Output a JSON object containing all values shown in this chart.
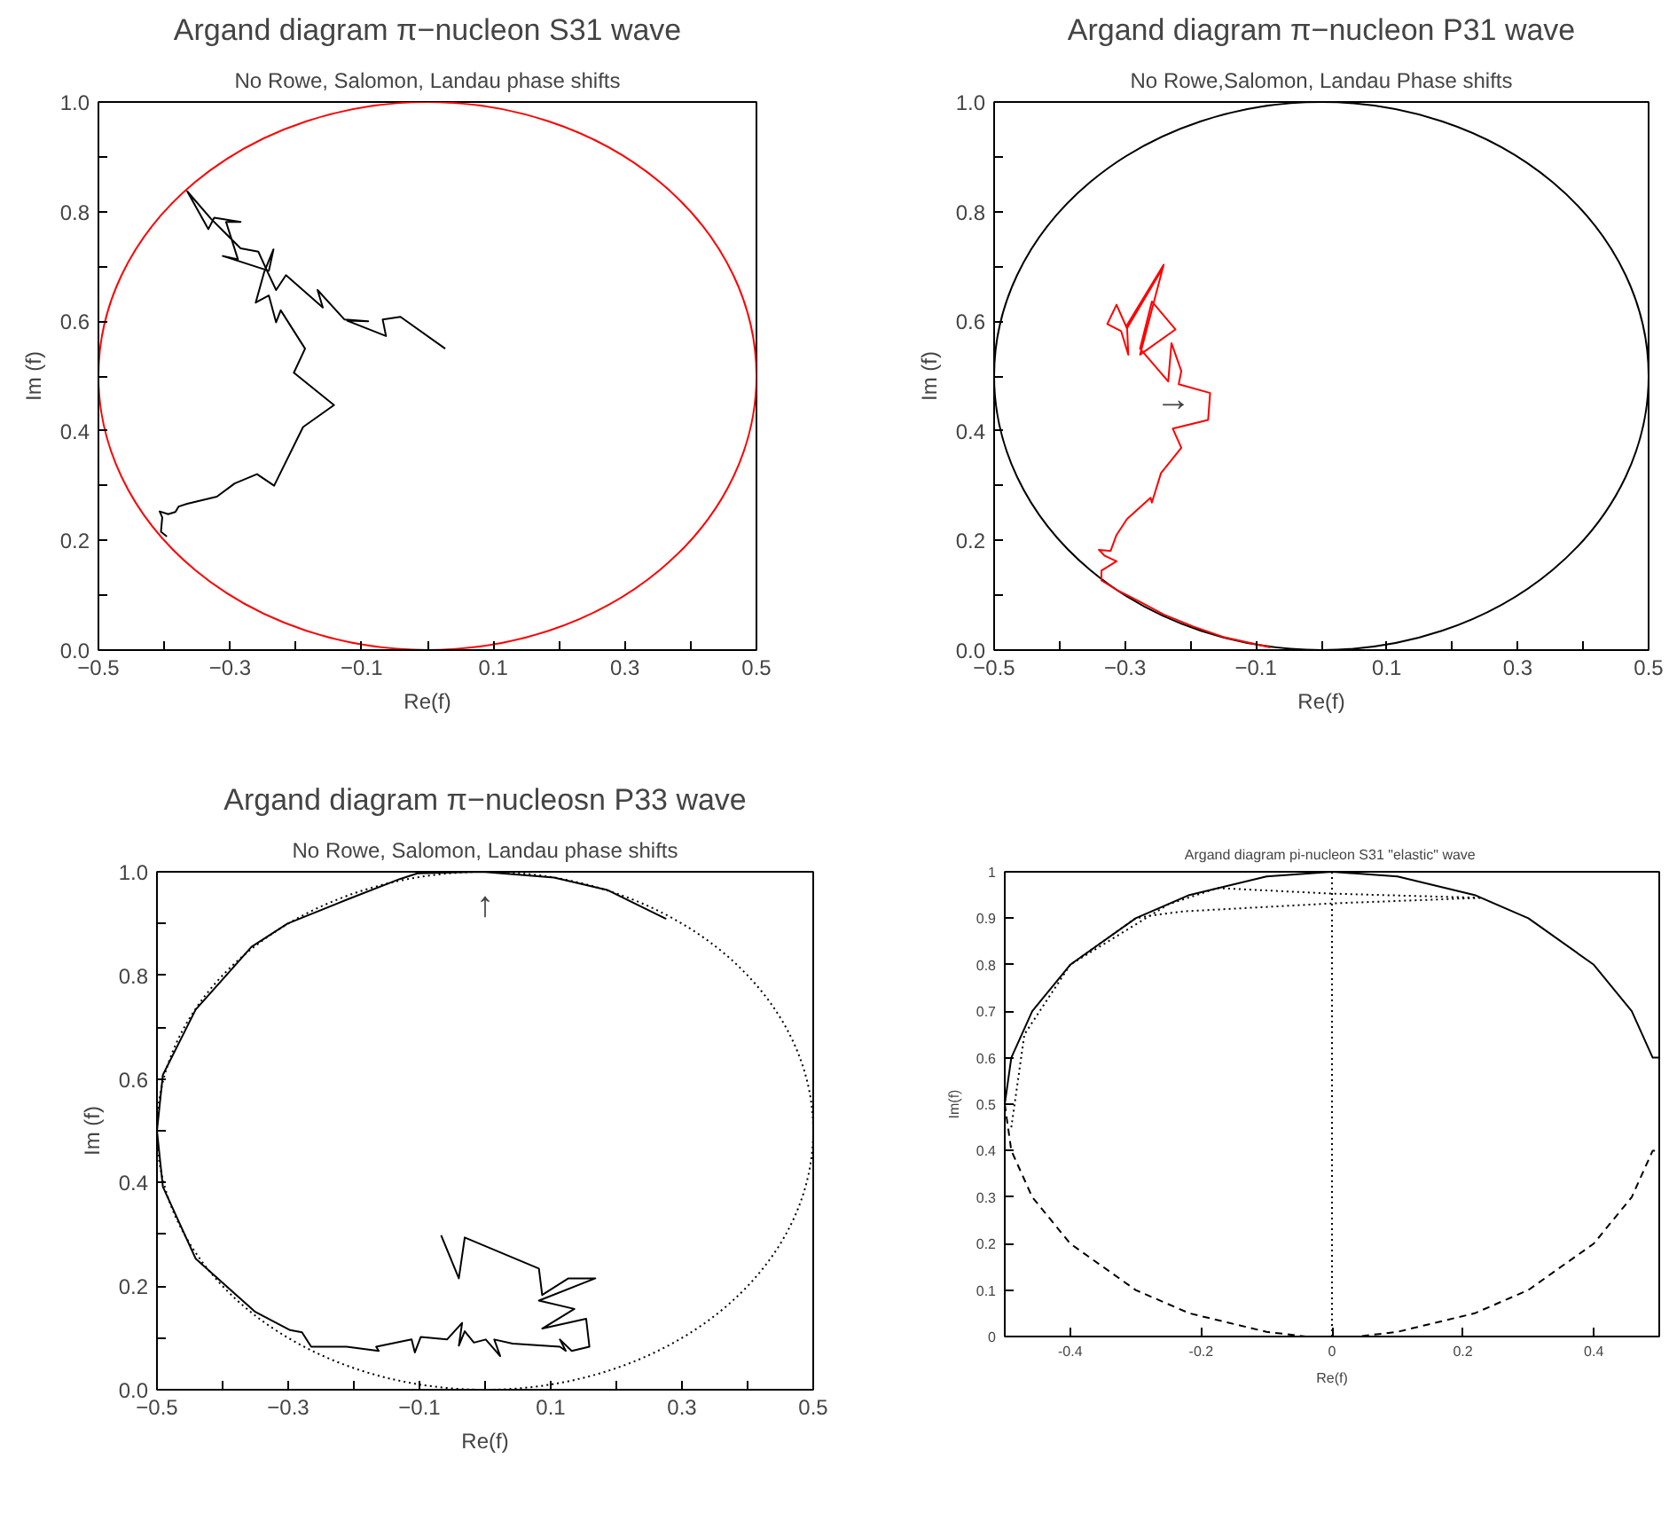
{
  "chart_data": [
    {
      "type": "line",
      "title": "Argand diagram π−nucleon S31 wave",
      "subtitle": "No Rowe, Salomon, Landau phase shifts",
      "xlabel": "Re(f)",
      "ylabel": "Im (f)",
      "xlim": [
        -0.5,
        0.5
      ],
      "ylim": [
        0,
        1
      ],
      "xticks": [
        {
          "value": -0.5,
          "label": "−0.5"
        },
        {
          "value": -0.4,
          "label": null
        },
        {
          "value": -0.3,
          "label": "−0.3"
        },
        {
          "value": -0.2,
          "label": null
        },
        {
          "value": -0.1,
          "label": "−0.1"
        },
        {
          "value": 0,
          "label": null
        },
        0.1,
        {
          "value": 0.2,
          "label": null
        },
        0.3,
        {
          "value": 0.4,
          "label": null
        },
        0.5
      ],
      "yticks": [
        {
          "value": 0,
          "label": "0.0"
        },
        {
          "value": 0.1,
          "label": null
        },
        0.2,
        {
          "value": 0.3,
          "label": null
        },
        0.4,
        {
          "value": 0.5,
          "label": null
        },
        0.6,
        {
          "value": 0.7,
          "label": null
        },
        0.8,
        {
          "value": 0.9,
          "label": null
        },
        {
          "value": 1,
          "label": "1.0"
        }
      ],
      "series": [
        {
          "color": "#000000",
          "line_style": "solid",
          "x": [
            -0.396,
            -0.405,
            -0.403,
            -0.407,
            -0.394,
            -0.383,
            -0.378,
            -0.365,
            -0.32,
            -0.293,
            -0.259,
            -0.233,
            -0.189,
            -0.142,
            -0.203,
            -0.186,
            -0.223,
            -0.23,
            -0.241,
            -0.261,
            -0.248,
            -0.234,
            -0.241,
            -0.311,
            -0.288,
            -0.306,
            -0.284,
            -0.324,
            -0.333,
            -0.365,
            -0.329,
            -0.284,
            -0.257,
            -0.243,
            -0.23,
            -0.215,
            -0.159,
            -0.167,
            -0.126,
            -0.09,
            -0.122,
            -0.063,
            -0.068,
            -0.041,
            0.027
          ],
          "values": [
            0.207,
            0.216,
            0.242,
            0.253,
            0.248,
            0.252,
            0.262,
            0.267,
            0.28,
            0.304,
            0.321,
            0.3,
            0.407,
            0.447,
            0.506,
            0.55,
            0.62,
            0.598,
            0.647,
            0.634,
            0.69,
            0.731,
            0.692,
            0.719,
            0.713,
            0.781,
            0.781,
            0.789,
            0.768,
            0.837,
            0.787,
            0.733,
            0.727,
            0.69,
            0.657,
            0.684,
            0.625,
            0.657,
            0.603,
            0.6,
            0.601,
            0.573,
            0.603,
            0.608,
            0.55
          ]
        }
      ]
    },
    {
      "type": "line",
      "title": "Argand diagram π−nucleon P31 wave",
      "subtitle": "No Rowe,Salomon, Landau Phase shifts",
      "xlabel": "Re(f)",
      "ylabel": "Im (f)",
      "xlim": [
        -0.5,
        0.5
      ],
      "ylim": [
        0,
        1
      ],
      "xticks": [
        {
          "value": -0.5,
          "label": "−0.5"
        },
        {
          "value": -0.4,
          "label": null
        },
        {
          "value": -0.3,
          "label": "−0.3"
        },
        {
          "value": -0.2,
          "label": null
        },
        {
          "value": -0.1,
          "label": "−0.1"
        },
        {
          "value": 0,
          "label": null
        },
        0.1,
        {
          "value": 0.2,
          "label": null
        },
        0.3,
        {
          "value": 0.4,
          "label": null
        },
        0.5
      ],
      "yticks": [
        {
          "value": 0,
          "label": "0.0"
        },
        {
          "value": 0.1,
          "label": null
        },
        0.2,
        {
          "value": 0.3,
          "label": null
        },
        0.4,
        {
          "value": 0.5,
          "label": null
        },
        0.6,
        {
          "value": 0.7,
          "label": null
        },
        0.8,
        {
          "value": 0.9,
          "label": null
        },
        {
          "value": 1,
          "label": "1.0"
        }
      ],
      "annotations": [
        "→"
      ],
      "series": [
        {
          "color": "#ff0000",
          "line_style": "solid",
          "x": [
            -0.078,
            -0.15,
            -0.196,
            -0.241,
            -0.277,
            -0.313,
            -0.336,
            -0.336,
            -0.313,
            -0.331,
            -0.34,
            -0.322,
            -0.313,
            -0.297,
            -0.261,
            -0.259,
            -0.245,
            -0.214,
            -0.227,
            -0.173,
            -0.17,
            -0.218,
            -0.214,
            -0.229,
            -0.234,
            -0.277,
            -0.259,
            -0.223,
            -0.277,
            -0.241,
            -0.297,
            -0.295,
            -0.306,
            -0.327,
            -0.313,
            -0.297,
            -0.241
          ],
          "values": [
            0.005,
            0.024,
            0.043,
            0.065,
            0.088,
            0.11,
            0.127,
            0.145,
            0.162,
            0.172,
            0.183,
            0.181,
            0.21,
            0.239,
            0.278,
            0.269,
            0.323,
            0.369,
            0.404,
            0.42,
            0.469,
            0.485,
            0.509,
            0.56,
            0.49,
            0.55,
            0.636,
            0.585,
            0.539,
            0.703,
            0.593,
            0.539,
            0.582,
            0.595,
            0.63,
            0.587,
            0.7
          ]
        }
      ]
    },
    {
      "type": "line",
      "title": "Argand diagram π−nucleosn P33 wave",
      "subtitle": "No Rowe, Salomon, Landau phase shifts",
      "xlabel": "Re(f)",
      "ylabel": "Im (f)",
      "xlim": [
        -0.5,
        0.5
      ],
      "ylim": [
        0,
        1
      ],
      "xticks": [
        {
          "value": -0.5,
          "label": "−0.5"
        },
        {
          "value": -0.4,
          "label": null
        },
        {
          "value": -0.3,
          "label": "−0.3"
        },
        {
          "value": -0.2,
          "label": null
        },
        {
          "value": -0.1,
          "label": "−0.1"
        },
        {
          "value": 0,
          "label": null
        },
        0.1,
        {
          "value": 0.2,
          "label": null
        },
        0.3,
        {
          "value": 0.4,
          "label": null
        },
        0.5
      ],
      "yticks": [
        {
          "value": 0,
          "label": "0.0"
        },
        {
          "value": 0.1,
          "label": null
        },
        0.2,
        {
          "value": 0.3,
          "label": null
        },
        0.4,
        {
          "value": 0.5,
          "label": null
        },
        0.6,
        {
          "value": 0.7,
          "label": null
        },
        0.8,
        {
          "value": 0.9,
          "label": null
        },
        {
          "value": 1,
          "label": "1.0"
        }
      ],
      "annotations": [
        "↑"
      ],
      "series": [
        {
          "color": "#000000",
          "line_style": "solid",
          "x": [
            0.276,
            0.186,
            0.105,
            -0.004,
            -0.103,
            -0.13,
            -0.211,
            -0.301,
            -0.356,
            -0.441,
            -0.491,
            -0.5,
            -0.491,
            -0.441,
            -0.351,
            -0.297,
            -0.279,
            -0.265,
            -0.211,
            -0.162,
            -0.166,
            -0.112,
            -0.107,
            -0.098,
            -0.058,
            -0.035,
            -0.04,
            -0.031,
            -0.017,
            0.001,
            0.023,
            0.014,
            0.042,
            0.114,
            0.123,
            0.114,
            0.132,
            0.159,
            0.154,
            0.087,
            0.136,
            0.082,
            0.168,
            0.127,
            0.087,
            0.082,
            -0.031,
            -0.04,
            -0.067
          ],
          "values": [
            0.909,
            0.965,
            0.989,
            1,
            0.997,
            0.986,
            0.946,
            0.9,
            0.855,
            0.734,
            0.608,
            0.5,
            0.392,
            0.253,
            0.151,
            0.115,
            0.111,
            0.083,
            0.083,
            0.075,
            0.083,
            0.097,
            0.072,
            0.102,
            0.097,
            0.129,
            0.085,
            0.113,
            0.091,
            0.097,
            0.065,
            0.097,
            0.089,
            0.083,
            0.075,
            0.097,
            0.075,
            0.083,
            0.137,
            0.118,
            0.156,
            0.172,
            0.215,
            0.215,
            0.183,
            0.234,
            0.294,
            0.215,
            0.298
          ]
        }
      ]
    },
    {
      "type": "line",
      "title": "Argand diagram pi-nucleon S31 \"elastic\"  wave",
      "xlabel": "Re(f)",
      "ylabel": "Im(f)",
      "xlim": [
        -0.5,
        0.5
      ],
      "ylim": [
        0,
        1
      ],
      "xticks": [
        -0.4,
        -0.2,
        0,
        0.2,
        0.4
      ],
      "yticks": [
        0,
        0.1,
        0.2,
        0.3,
        0.4,
        0.5,
        0.6,
        0.7,
        0.8,
        0.9,
        1
      ],
      "ref_lines": [
        {
          "axis": "x",
          "value": 0,
          "color": "#000000",
          "line_style": "dotted"
        }
      ],
      "series": [
        {
          "color": "#000000",
          "line_style": "solid",
          "x": [
            -0.5,
            -0.49,
            -0.458,
            -0.4,
            -0.3,
            -0.218,
            -0.1,
            0,
            0.1,
            0.218,
            0.3,
            0.4,
            0.458,
            0.49,
            0.5
          ],
          "values": [
            0.5,
            0.6,
            0.7,
            0.8,
            0.9,
            0.95,
            0.99,
            1,
            0.99,
            0.95,
            0.9,
            0.8,
            0.7,
            0.6,
            0.6
          ]
        },
        {
          "color": "#000000",
          "line_style": "dashed",
          "x": [
            -0.5,
            -0.49,
            -0.458,
            -0.4,
            -0.3,
            -0.218,
            -0.1,
            -0.04,
            0.04,
            0.1,
            0.218,
            0.3,
            0.4,
            0.458,
            0.49,
            0.5
          ],
          "values": [
            0.5,
            0.4,
            0.3,
            0.2,
            0.1,
            0.05,
            0.01,
            0,
            0,
            0.01,
            0.05,
            0.1,
            0.2,
            0.3,
            0.4,
            0.4
          ]
        },
        {
          "color": "#000000",
          "line_style": "dotted",
          "x": [
            -0.49,
            -0.47,
            -0.4,
            -0.3,
            -0.27,
            -0.225,
            0,
            0.229,
            0,
            -0.175,
            -0.25,
            -0.4
          ],
          "values": [
            0.45,
            0.65,
            0.8,
            0.9,
            0.907,
            0.915,
            0.932,
            0.944,
            0.953,
            0.965,
            0.93,
            0.8
          ]
        }
      ]
    }
  ]
}
